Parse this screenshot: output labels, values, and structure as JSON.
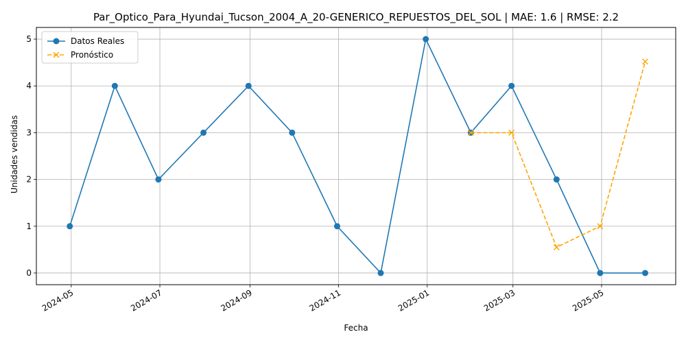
{
  "chart_data": {
    "type": "line",
    "title": "Par_Optico_Para_Hyundai_Tucson_2004_A_20-GENERICO_REPUESTOS_DEL_SOL | MAE: 1.6 | RMSE: 2.2",
    "xlabel": "Fecha",
    "ylabel": "Unidades vendidas",
    "x_ticks": [
      "2024-05",
      "2024-07",
      "2024-09",
      "2024-11",
      "2025-01",
      "2025-03",
      "2025-05"
    ],
    "x_tick_dates": [
      "2024-05-01",
      "2024-07-01",
      "2024-09-01",
      "2024-11-01",
      "2025-01-01",
      "2025-03-01",
      "2025-05-01"
    ],
    "y_ticks": [
      0,
      1,
      2,
      3,
      4,
      5
    ],
    "xlim": [
      "2024-04-07",
      "2025-06-21"
    ],
    "ylim": [
      -0.25,
      5.25
    ],
    "grid": true,
    "legend_position": "top-left",
    "series": [
      {
        "name": "Datos Reales",
        "color": "#1f77b4",
        "line_style": "solid",
        "marker": "circle",
        "x": [
          "2024-04-30",
          "2024-05-31",
          "2024-06-30",
          "2024-07-31",
          "2024-08-31",
          "2024-09-30",
          "2024-10-31",
          "2024-11-30",
          "2024-12-31",
          "2025-01-31",
          "2025-02-28",
          "2025-03-31",
          "2025-04-30",
          "2025-05-31"
        ],
        "values": [
          1,
          4,
          2,
          3,
          4,
          3,
          1,
          0,
          5,
          3,
          4,
          2,
          0,
          0
        ]
      },
      {
        "name": "Pronóstico",
        "color": "#ffa500",
        "line_style": "dashed",
        "marker": "x",
        "x": [
          "2025-01-31",
          "2025-02-28",
          "2025-03-31",
          "2025-04-30",
          "2025-05-31"
        ],
        "values": [
          3,
          3,
          0.55,
          1,
          4.52
        ]
      }
    ]
  }
}
